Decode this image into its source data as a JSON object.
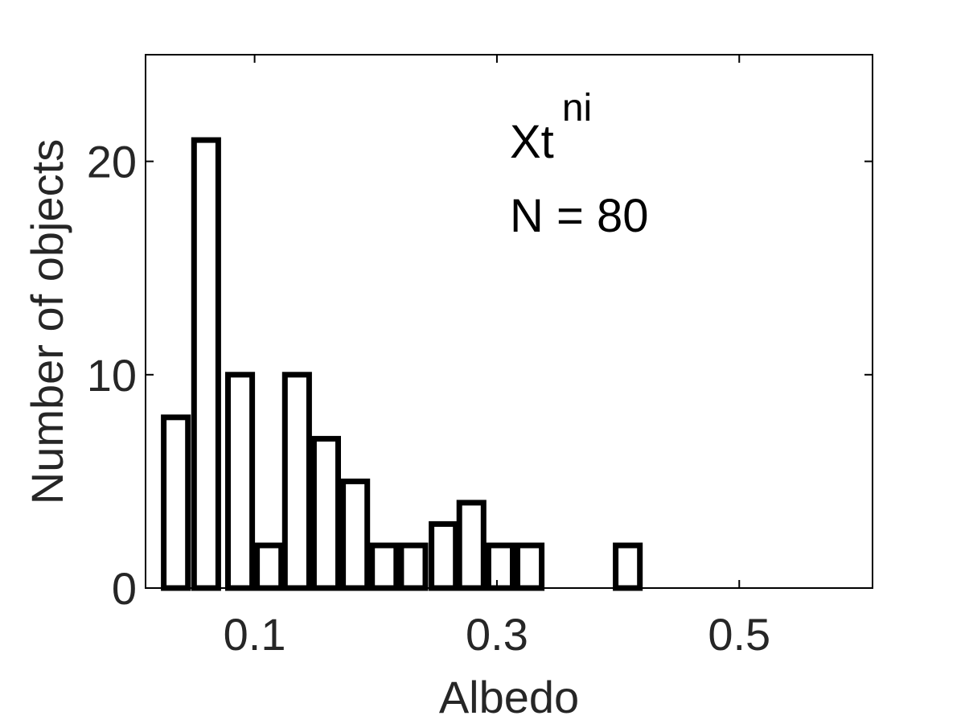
{
  "chart_data": {
    "type": "bar",
    "title": "",
    "xlabel": "Albedo",
    "ylabel": "Number of objects",
    "xlim": [
      0.01,
      0.61
    ],
    "ylim": [
      0,
      25
    ],
    "xticks": [
      0.1,
      0.3,
      0.5
    ],
    "xtick_labels": [
      "0.1",
      "0.3",
      "0.5"
    ],
    "yticks": [
      0,
      10,
      20
    ],
    "ytick_labels": [
      "0",
      "10",
      "20"
    ],
    "bin_width": 0.02,
    "bins": [
      {
        "x": 0.035,
        "value": 8
      },
      {
        "x": 0.06,
        "value": 21
      },
      {
        "x": 0.088,
        "value": 10
      },
      {
        "x": 0.112,
        "value": 2
      },
      {
        "x": 0.135,
        "value": 10
      },
      {
        "x": 0.159,
        "value": 7
      },
      {
        "x": 0.183,
        "value": 5
      },
      {
        "x": 0.207,
        "value": 2
      },
      {
        "x": 0.231,
        "value": 2
      },
      {
        "x": 0.256,
        "value": 3
      },
      {
        "x": 0.279,
        "value": 4
      },
      {
        "x": 0.303,
        "value": 2
      },
      {
        "x": 0.327,
        "value": 2
      },
      {
        "x": 0.408,
        "value": 2
      }
    ],
    "annotation": {
      "main": "Xt",
      "superscript": "ni",
      "count_label": "N = 80"
    },
    "grid": false,
    "colors": {
      "bar_fill": "#ffffff",
      "bar_edge": "#000000",
      "text": "#262626"
    }
  }
}
